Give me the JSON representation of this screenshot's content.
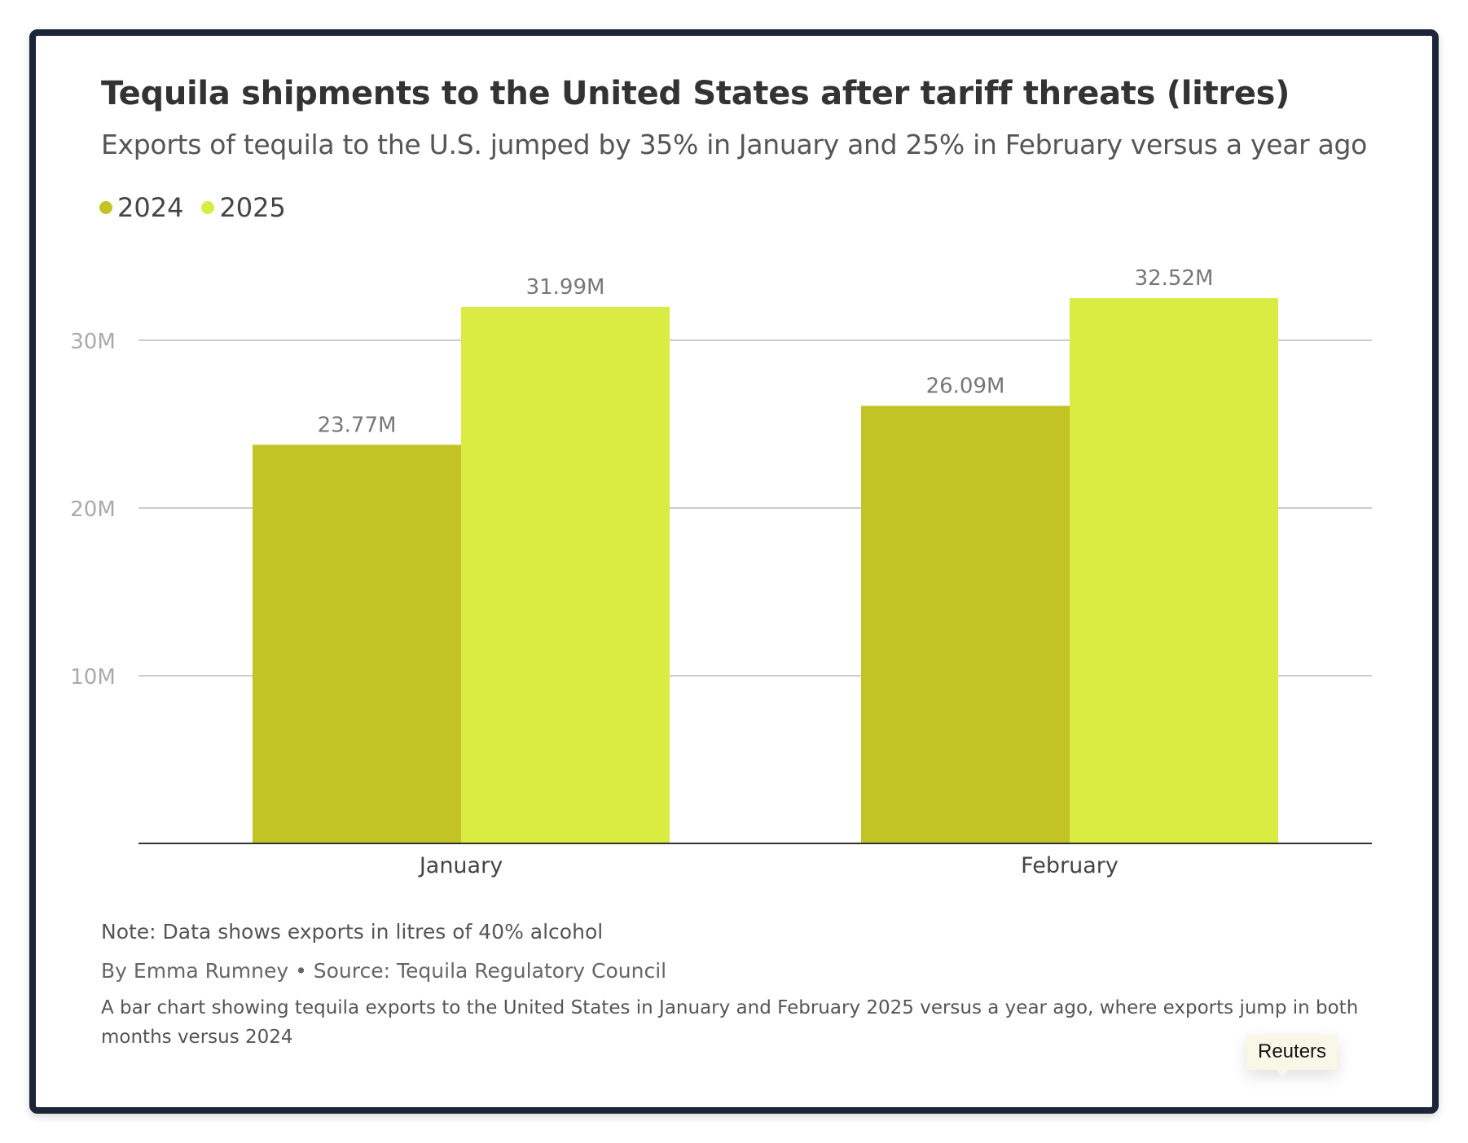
{
  "chart_data": {
    "type": "bar",
    "title": "Tequila shipments to the United States after tariff threats (litres)",
    "subtitle": "Exports of tequila to the U.S. jumped by 35% in January and 25% in February versus a year ago",
    "categories": [
      "January",
      "February"
    ],
    "series": [
      {
        "name": "2024",
        "values": [
          23770000,
          26090000
        ],
        "labels": [
          "23.77M",
          "26.09M"
        ],
        "color": "#c1c424"
      },
      {
        "name": "2025",
        "values": [
          31990000,
          32520000
        ],
        "labels": [
          "31.99M",
          "32.52M"
        ],
        "color": "#daeb41"
      }
    ],
    "ylim": [
      0,
      30000000
    ],
    "yticks": [
      {
        "value": 10000000,
        "label": "10M"
      },
      {
        "value": 20000000,
        "label": "20M"
      },
      {
        "value": 30000000,
        "label": "30M"
      }
    ],
    "xlabel": "",
    "ylabel": "",
    "grid": true,
    "legend_position": "top-left",
    "note": "Note: Data shows exports in litres of 40% alcohol",
    "byline": "By Emma Rumney • Source: Tequila Regulatory Council",
    "description": "A bar chart showing tequila exports to the United States in January and February 2025 versus a year ago, where exports jump in both months versus 2024"
  },
  "tooltip": {
    "text": "Reuters"
  },
  "colors": {
    "frame_border": "#1c2638",
    "gridline": "#cccccc",
    "axis": "#333333",
    "tick_label": "#aaaaaa",
    "data_label": "#777777"
  }
}
